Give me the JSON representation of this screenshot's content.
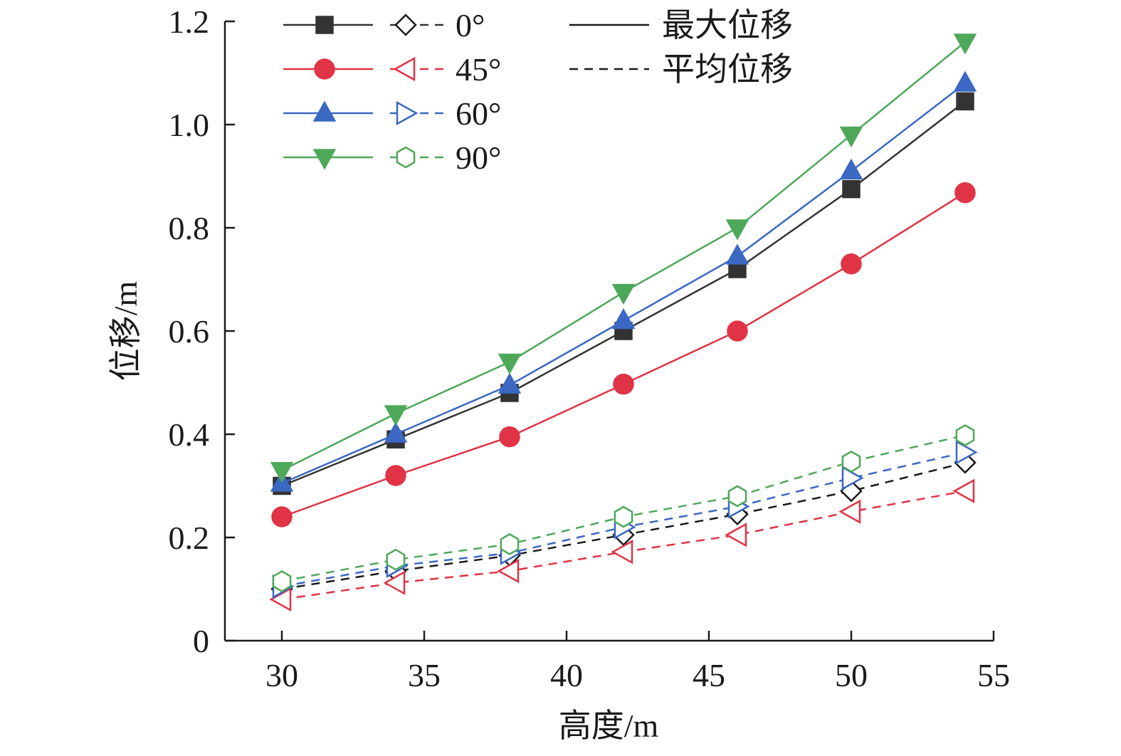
{
  "chart_data": {
    "type": "line",
    "xlabel": "高度/m",
    "ylabel": "位移/m",
    "x_ticks": [
      "30",
      "35",
      "40",
      "45",
      "50",
      "55"
    ],
    "y_ticks": [
      "0",
      "0.2",
      "0.4",
      "0.6",
      "0.8",
      "1.0",
      "1.2"
    ],
    "xlim": [
      28,
      55
    ],
    "ylim": [
      0,
      1.2
    ],
    "grid": false,
    "legend_position": "top-left",
    "x": [
      30,
      34,
      38,
      42,
      46,
      50,
      54
    ],
    "line_styles": [
      {
        "label": "最大位移",
        "dash": "solid"
      },
      {
        "label": "平均位移",
        "dash": "dashed"
      }
    ],
    "angles": [
      {
        "label": "0°",
        "color": "#333333",
        "max_marker": "square",
        "avg_marker": "diamond"
      },
      {
        "label": "45°",
        "color": "#e03345",
        "max_marker": "circle",
        "avg_marker": "triangle-left"
      },
      {
        "label": "60°",
        "color": "#3a68c2",
        "max_marker": "triangle-up",
        "avg_marker": "triangle-right"
      },
      {
        "label": "90°",
        "color": "#4ea85a",
        "max_marker": "triangle-down",
        "avg_marker": "hexagon"
      }
    ],
    "series": [
      {
        "angle": "0°",
        "kind": "最大位移",
        "color": "#333333",
        "marker": "square",
        "dash": "solid",
        "fill": true,
        "values": [
          0.3,
          0.39,
          0.48,
          0.6,
          0.72,
          0.875,
          1.045
        ]
      },
      {
        "angle": "45°",
        "kind": "最大位移",
        "color": "#e03345",
        "marker": "circle",
        "dash": "solid",
        "fill": true,
        "values": [
          0.24,
          0.32,
          0.395,
          0.497,
          0.6,
          0.73,
          0.868
        ]
      },
      {
        "angle": "60°",
        "kind": "最大位移",
        "color": "#3a68c2",
        "marker": "triangle-up",
        "dash": "solid",
        "fill": true,
        "values": [
          0.305,
          0.4,
          0.495,
          0.62,
          0.745,
          0.91,
          1.08
        ]
      },
      {
        "angle": "90°",
        "kind": "最大位移",
        "color": "#4ea85a",
        "marker": "triangle-down",
        "dash": "solid",
        "fill": true,
        "values": [
          0.33,
          0.44,
          0.54,
          0.675,
          0.8,
          0.98,
          1.16
        ]
      },
      {
        "angle": "0°",
        "kind": "平均位移",
        "color": "#1a1a1a",
        "marker": "diamond",
        "dash": "dashed",
        "fill": false,
        "values": [
          0.1,
          0.135,
          0.165,
          0.205,
          0.245,
          0.29,
          0.345
        ]
      },
      {
        "angle": "45°",
        "kind": "平均位移",
        "color": "#e03345",
        "marker": "triangle-left",
        "dash": "dashed",
        "fill": false,
        "values": [
          0.08,
          0.112,
          0.135,
          0.172,
          0.205,
          0.25,
          0.29
        ]
      },
      {
        "angle": "60°",
        "kind": "平均位移",
        "color": "#3a68c2",
        "marker": "triangle-right",
        "dash": "dashed",
        "fill": false,
        "values": [
          0.105,
          0.145,
          0.17,
          0.22,
          0.26,
          0.315,
          0.365
        ]
      },
      {
        "angle": "90°",
        "kind": "平均位移",
        "color": "#4ea85a",
        "marker": "hexagon",
        "dash": "dashed",
        "fill": false,
        "values": [
          0.115,
          0.157,
          0.187,
          0.24,
          0.28,
          0.347,
          0.398
        ]
      }
    ]
  }
}
